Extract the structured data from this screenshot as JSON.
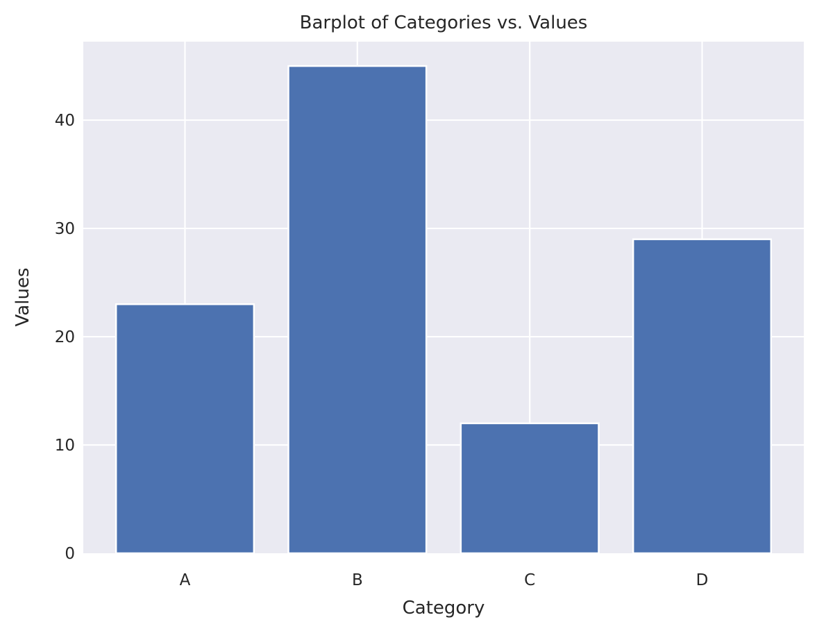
{
  "chart_data": {
    "type": "bar",
    "title": "Barplot of Categories vs. Values",
    "xlabel": "Category",
    "ylabel": "Values",
    "categories": [
      "A",
      "B",
      "C",
      "D"
    ],
    "values": [
      23,
      45,
      12,
      29
    ],
    "ylim": [
      0,
      47.25
    ],
    "yticks": [
      0,
      10,
      20,
      30,
      40
    ],
    "grid": true,
    "colors": {
      "bar": "#4c72b0",
      "background": "#eaeaf2",
      "grid": "#ffffff",
      "text": "#262626"
    }
  }
}
